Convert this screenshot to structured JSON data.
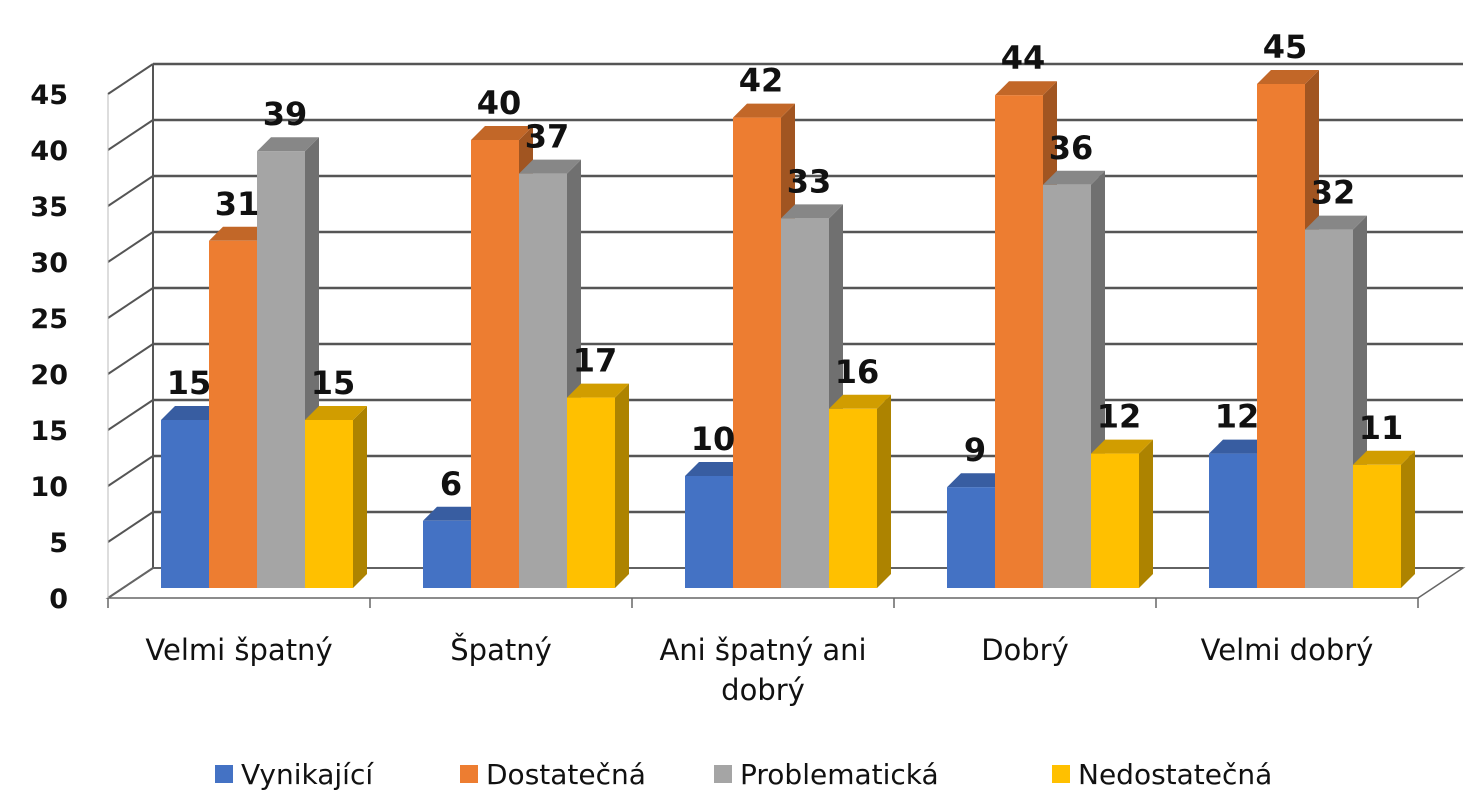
{
  "chart_data": {
    "type": "bar",
    "title": "",
    "xlabel": "",
    "ylabel": "",
    "ylim": [
      0,
      45
    ],
    "yticks": [
      0,
      5,
      10,
      15,
      20,
      25,
      30,
      35,
      40,
      45
    ],
    "grid": true,
    "legend_position": "bottom",
    "categories": [
      [
        "Velmi špatný"
      ],
      [
        "Špatný"
      ],
      [
        "Ani špatný ani",
        "dobrý"
      ],
      [
        "Dobrý"
      ],
      [
        "Velmi dobrý"
      ]
    ],
    "series": [
      {
        "name": "Vynikající",
        "color": "#4472C4",
        "values": [
          15,
          6,
          10,
          9,
          12
        ]
      },
      {
        "name": "Dostatečná",
        "color": "#ED7D31",
        "values": [
          31,
          40,
          42,
          44,
          45
        ]
      },
      {
        "name": "Problematická",
        "color": "#A5A5A5",
        "values": [
          39,
          37,
          33,
          36,
          32
        ]
      },
      {
        "name": "Nedostatečná",
        "color": "#FFC000",
        "values": [
          15,
          17,
          16,
          12,
          11
        ]
      }
    ]
  }
}
